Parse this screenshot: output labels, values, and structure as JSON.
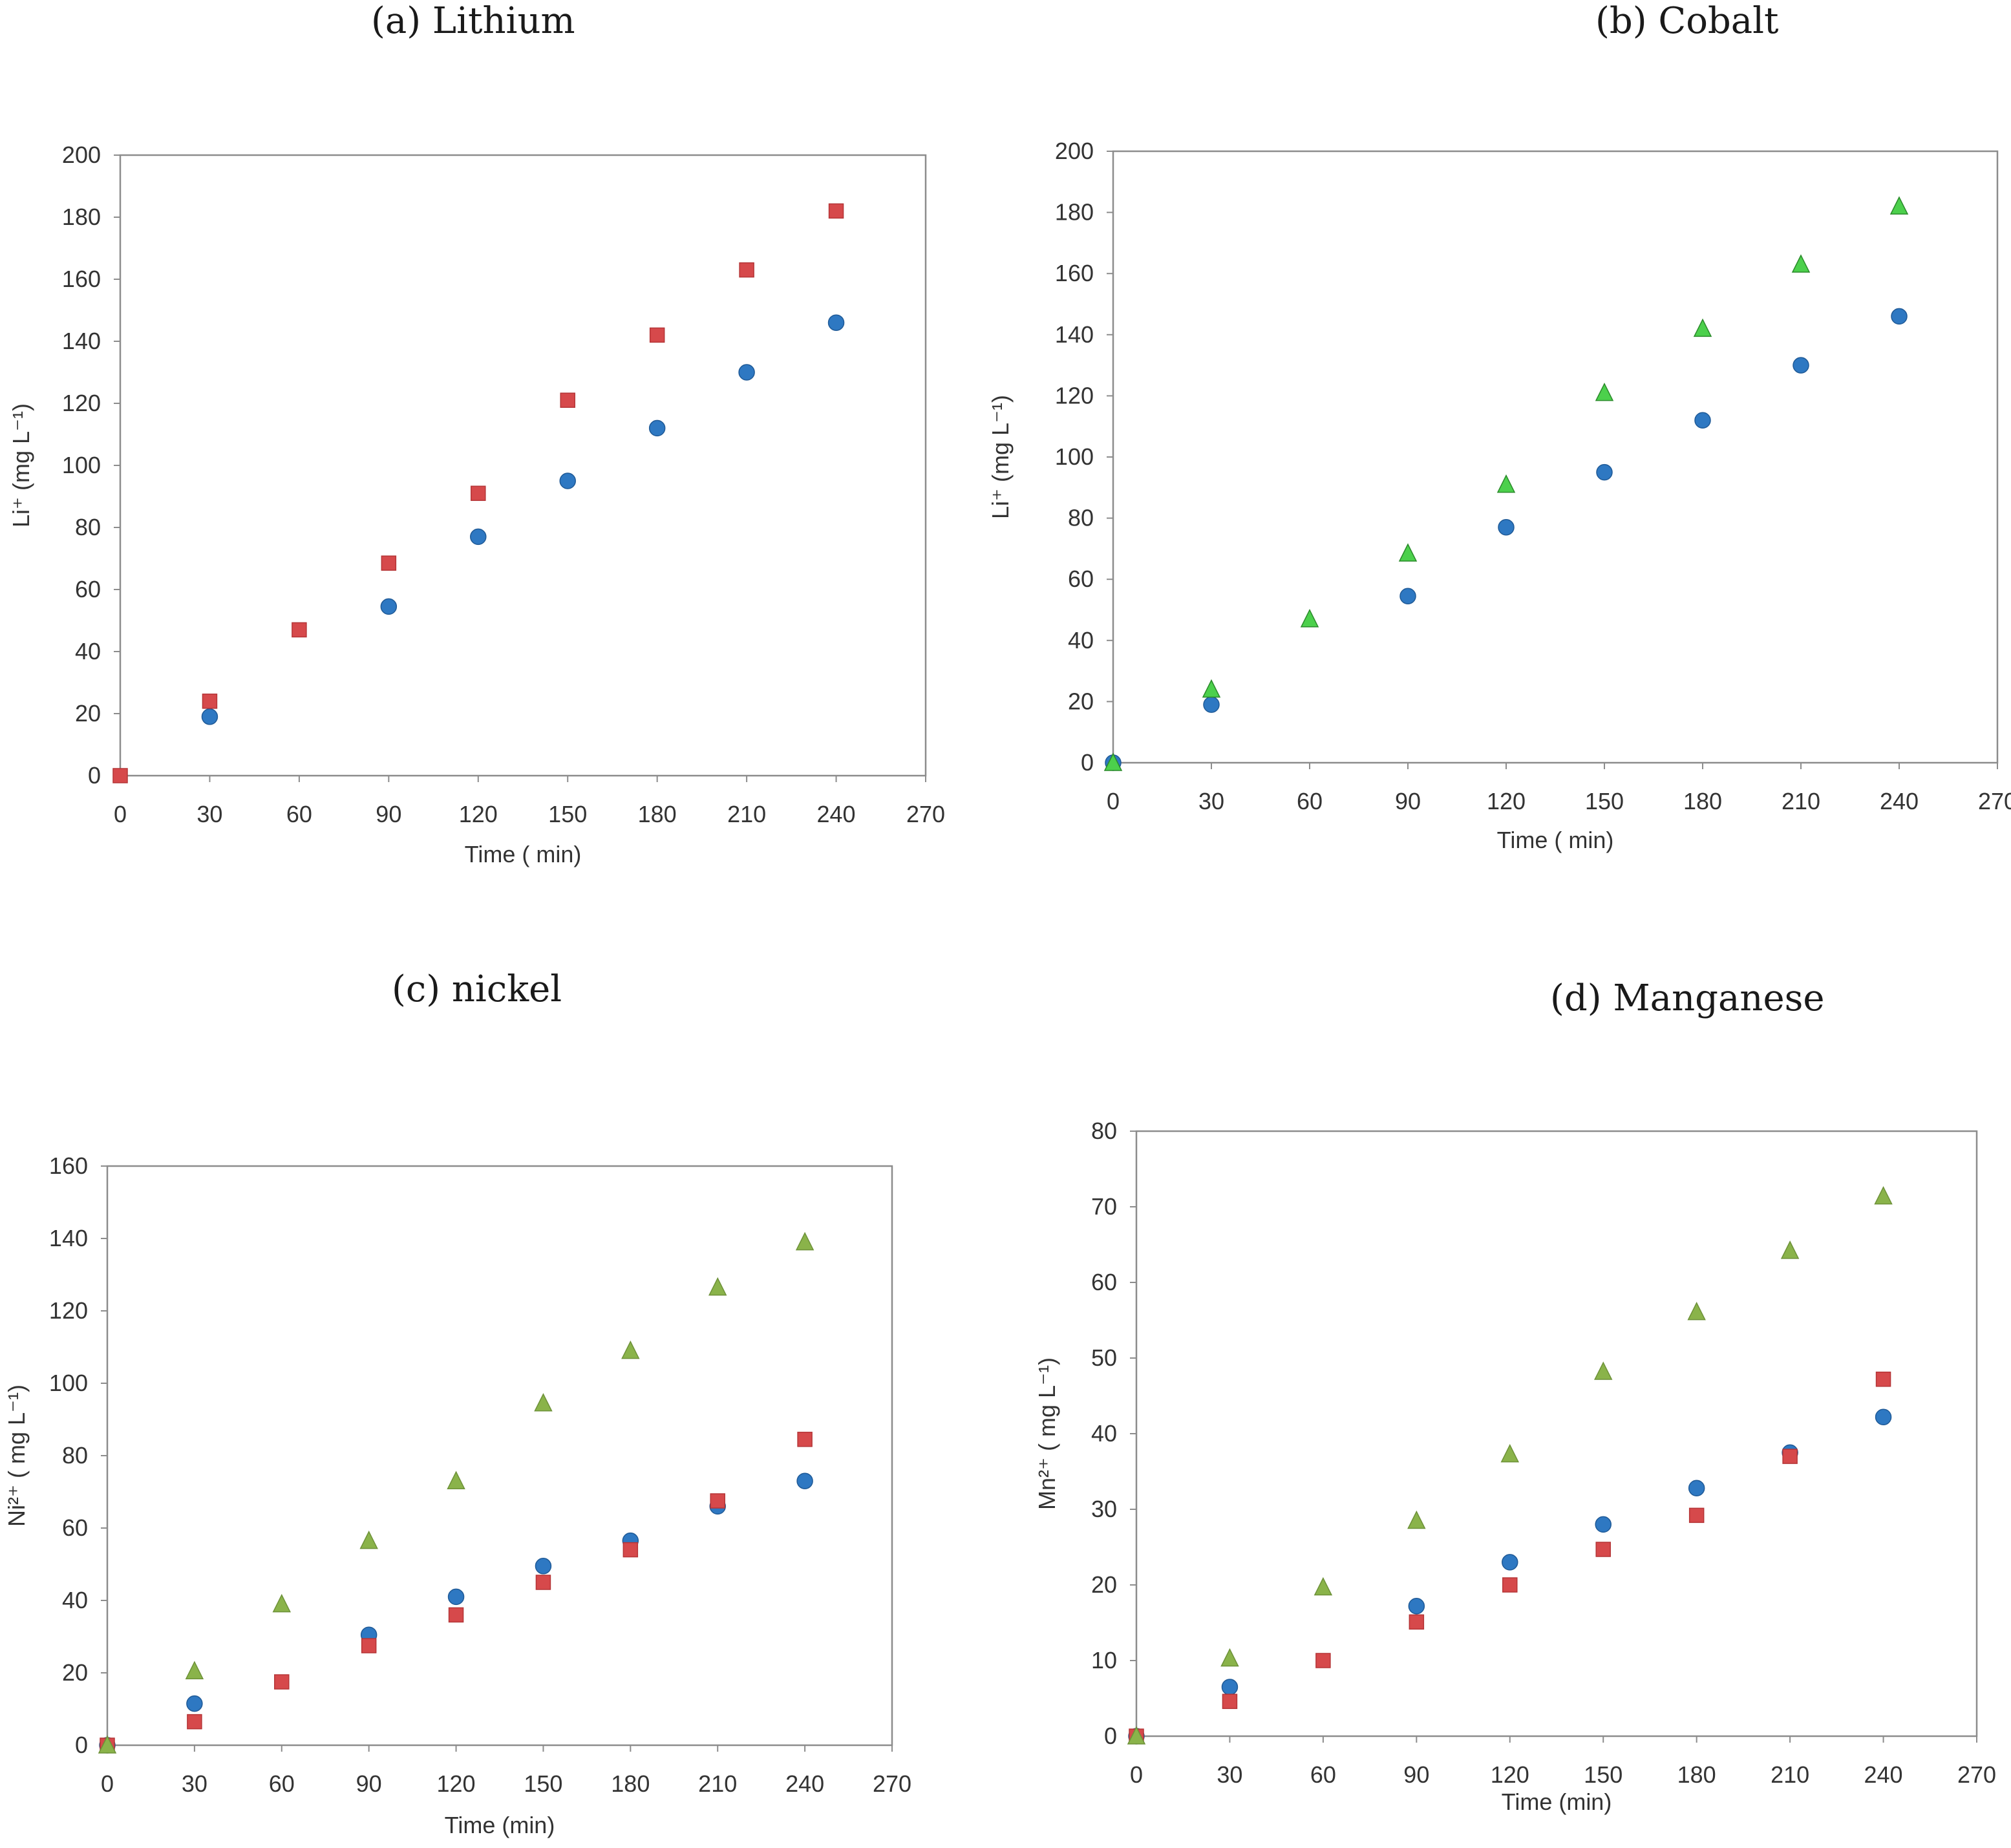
{
  "colors": {
    "blue": "#2e78c2",
    "red": "#d6494b",
    "green": "#8ab34a",
    "green_bright": "#4cd04c",
    "frame": "#8c8c8c"
  },
  "chart_data": [
    {
      "type": "scatter",
      "panel": "a",
      "title": "(a) Lithium",
      "xlabel": "Time ( min)",
      "ylabel": "Li⁺ (mg L⁻¹)",
      "xlim": [
        0,
        270
      ],
      "ylim": [
        0,
        200
      ],
      "xticks": [
        "0",
        "30",
        "60",
        "90",
        "120",
        "150",
        "180",
        "210",
        "240",
        "270"
      ],
      "yticks": [
        "0",
        "20",
        "40",
        "60",
        "80",
        "100",
        "120",
        "140",
        "160",
        "180",
        "200"
      ],
      "series": [
        {
          "name": "circle",
          "marker": "circle",
          "color": "blue",
          "x": [
            30,
            90,
            120,
            150,
            180,
            210,
            240
          ],
          "y": [
            19,
            54.5,
            77,
            95,
            112,
            130,
            146
          ]
        },
        {
          "name": "square",
          "marker": "square",
          "color": "red",
          "x": [
            0,
            30,
            60,
            90,
            120,
            150,
            180,
            210,
            240
          ],
          "y": [
            0,
            24,
            47,
            68.5,
            91,
            121,
            142,
            163,
            182
          ]
        }
      ]
    },
    {
      "type": "scatter",
      "panel": "b",
      "title": "(b) Cobalt",
      "xlabel": "Time ( min)",
      "ylabel": "Li⁺ (mg L⁻¹)",
      "xlim": [
        0,
        270
      ],
      "ylim": [
        0,
        200
      ],
      "xticks": [
        "0",
        "30",
        "60",
        "90",
        "120",
        "150",
        "180",
        "210",
        "240",
        "270"
      ],
      "yticks": [
        "0",
        "20",
        "40",
        "60",
        "80",
        "100",
        "120",
        "140",
        "160",
        "180",
        "200"
      ],
      "series": [
        {
          "name": "circle",
          "marker": "circle",
          "color": "blue",
          "x": [
            0,
            30,
            90,
            120,
            150,
            180,
            210,
            240
          ],
          "y": [
            0,
            19,
            54.5,
            77,
            95,
            112,
            130,
            146
          ]
        },
        {
          "name": "triangle",
          "marker": "triangle",
          "color": "green_bright",
          "x": [
            0,
            30,
            60,
            90,
            120,
            150,
            180,
            210,
            240
          ],
          "y": [
            0,
            24,
            47,
            68.5,
            91,
            121,
            142,
            163,
            182
          ]
        }
      ]
    },
    {
      "type": "scatter",
      "panel": "c",
      "title": "(c) nickel",
      "xlabel": "Time (min)",
      "ylabel": "Ni²⁺ ( mg L⁻¹)",
      "xlim": [
        0,
        270
      ],
      "ylim": [
        0,
        160
      ],
      "xticks": [
        "0",
        "30",
        "60",
        "90",
        "120",
        "150",
        "180",
        "210",
        "240",
        "270"
      ],
      "yticks": [
        "0",
        "20",
        "40",
        "60",
        "80",
        "100",
        "120",
        "140",
        "160"
      ],
      "series": [
        {
          "name": "circle",
          "marker": "circle",
          "color": "blue",
          "x": [
            0,
            30,
            90,
            120,
            150,
            180,
            210,
            240
          ],
          "y": [
            0,
            11.5,
            30.5,
            41,
            49.5,
            56.5,
            66,
            73
          ]
        },
        {
          "name": "square",
          "marker": "square",
          "color": "red",
          "x": [
            0,
            30,
            60,
            90,
            120,
            150,
            180,
            210,
            240
          ],
          "y": [
            0,
            6.5,
            17.5,
            27.5,
            36,
            45,
            54,
            67.5,
            84.5
          ]
        },
        {
          "name": "triangle",
          "marker": "triangle",
          "color": "green",
          "x": [
            0,
            30,
            60,
            90,
            120,
            150,
            180,
            210,
            240
          ],
          "y": [
            0,
            20.5,
            39,
            56.5,
            73,
            94.5,
            109,
            126.5,
            139
          ]
        }
      ]
    },
    {
      "type": "scatter",
      "panel": "d",
      "title": "(d) Manganese",
      "xlabel": "Time (min)",
      "ylabel": "Mn²⁺ ( mg L⁻¹)",
      "xlim": [
        0,
        270
      ],
      "ylim": [
        0,
        80
      ],
      "xticks": [
        "0",
        "30",
        "60",
        "90",
        "120",
        "150",
        "180",
        "210",
        "240",
        "270"
      ],
      "yticks": [
        "0",
        "10",
        "20",
        "30",
        "40",
        "50",
        "60",
        "70",
        "80"
      ],
      "series": [
        {
          "name": "circle",
          "marker": "circle",
          "color": "blue",
          "x": [
            0,
            30,
            90,
            120,
            150,
            180,
            210,
            240
          ],
          "y": [
            0,
            6.5,
            17.2,
            23,
            28,
            32.8,
            37.5,
            42.2
          ]
        },
        {
          "name": "square",
          "marker": "square",
          "color": "red",
          "x": [
            0,
            30,
            60,
            90,
            120,
            150,
            180,
            210,
            240
          ],
          "y": [
            0,
            4.6,
            10,
            15.1,
            20,
            24.7,
            29.2,
            37,
            47.2
          ]
        },
        {
          "name": "triangle",
          "marker": "triangle",
          "color": "green",
          "x": [
            0,
            30,
            60,
            90,
            120,
            150,
            180,
            210,
            240
          ],
          "y": [
            0,
            10.3,
            19.7,
            28.5,
            37.3,
            48.2,
            56.1,
            64.2,
            71.4
          ]
        }
      ]
    }
  ]
}
